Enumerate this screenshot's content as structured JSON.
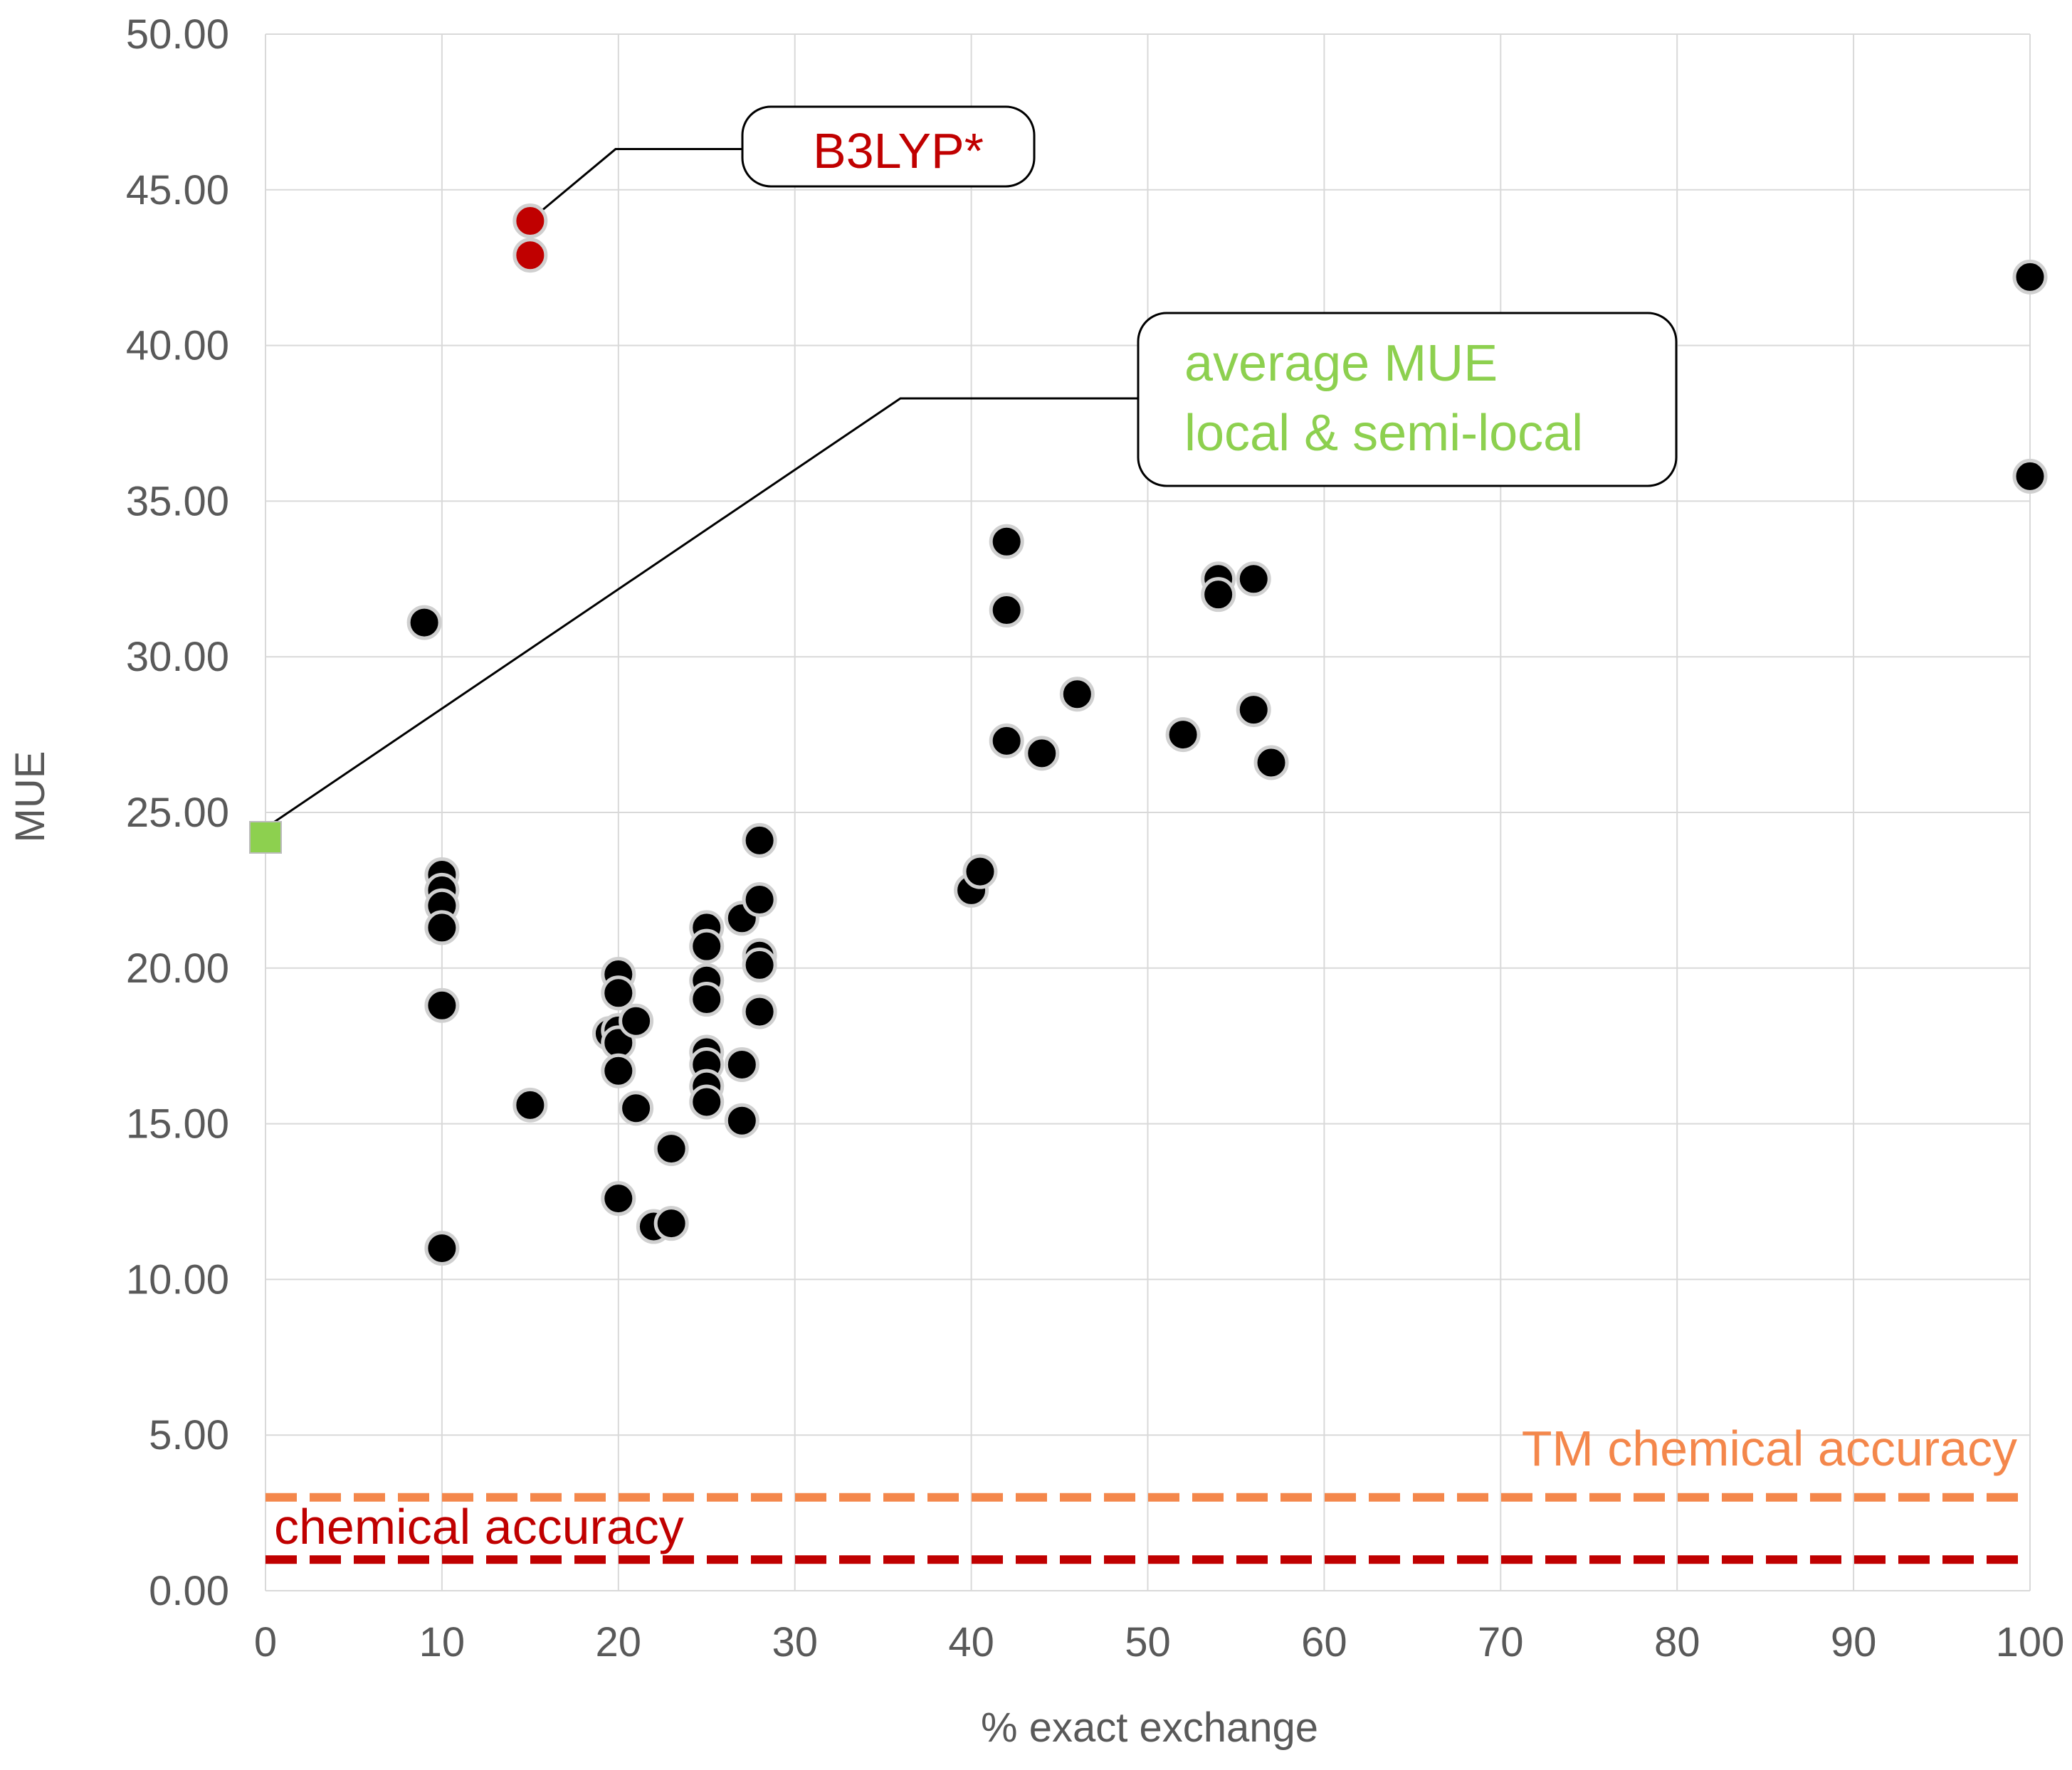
{
  "chart_data": {
    "type": "scatter",
    "title": "",
    "xlabel": "% exact exchange",
    "ylabel": "MUE",
    "xlim": [
      0,
      100
    ],
    "ylim": [
      0,
      50
    ],
    "x_ticks": [
      "0",
      "10",
      "20",
      "30",
      "40",
      "50",
      "60",
      "70",
      "80",
      "90",
      "100"
    ],
    "y_ticks": [
      "0.00",
      "5.00",
      "10.00",
      "15.00",
      "20.00",
      "25.00",
      "30.00",
      "35.00",
      "40.00",
      "45.00",
      "50.00"
    ],
    "grid": true,
    "colors": {
      "functionals": "#000000",
      "b3lyp": "#c00000",
      "average": "#8dd04f",
      "tm_line": "#f4874b",
      "chem_line": "#c00000",
      "grid": "#d9d9d9",
      "tick_text": "#595959"
    },
    "series": [
      {
        "name": "functionals",
        "marker": "circle",
        "points": [
          [
            9,
            31.1
          ],
          [
            10,
            23.0
          ],
          [
            10,
            22.5
          ],
          [
            10,
            22.0
          ],
          [
            10,
            21.3
          ],
          [
            10,
            18.8
          ],
          [
            10,
            11.0
          ],
          [
            15,
            15.6
          ],
          [
            19.5,
            17.9
          ],
          [
            20,
            19.8
          ],
          [
            20,
            19.2
          ],
          [
            20,
            18.0
          ],
          [
            20,
            17.6
          ],
          [
            20,
            16.7
          ],
          [
            20,
            12.6
          ],
          [
            21,
            18.3
          ],
          [
            21,
            15.5
          ],
          [
            22,
            11.7
          ],
          [
            23,
            11.8
          ],
          [
            23,
            14.2
          ],
          [
            25,
            21.3
          ],
          [
            25,
            20.7
          ],
          [
            25,
            19.6
          ],
          [
            25,
            19.0
          ],
          [
            25,
            17.3
          ],
          [
            25,
            16.9
          ],
          [
            25,
            16.2
          ],
          [
            25,
            15.7
          ],
          [
            27,
            21.6
          ],
          [
            27,
            16.9
          ],
          [
            27,
            15.1
          ],
          [
            28,
            24.1
          ],
          [
            28,
            22.2
          ],
          [
            28,
            20.4
          ],
          [
            28,
            20.1
          ],
          [
            28,
            18.6
          ],
          [
            40,
            22.5
          ],
          [
            40.5,
            23.1
          ],
          [
            42,
            33.7
          ],
          [
            42,
            31.5
          ],
          [
            42,
            27.3
          ],
          [
            44,
            26.9
          ],
          [
            46,
            28.8
          ],
          [
            52,
            27.5
          ],
          [
            54,
            32.5
          ],
          [
            54,
            32.0
          ],
          [
            56,
            32.5
          ],
          [
            56,
            28.3
          ],
          [
            57,
            26.6
          ],
          [
            100,
            42.2
          ],
          [
            100,
            35.8
          ]
        ]
      },
      {
        "name": "B3LYP*",
        "marker": "circle",
        "points": [
          [
            15,
            44.0
          ],
          [
            15,
            42.9
          ]
        ]
      },
      {
        "name": "average MUE local & semi-local",
        "marker": "square",
        "points": [
          [
            0,
            24.2
          ]
        ]
      }
    ],
    "reference_lines": [
      {
        "name": "TM chemical accuracy",
        "y": 3.0,
        "style": "dashed"
      },
      {
        "name": "chemical accuracy",
        "y": 1.0,
        "style": "dashed"
      }
    ],
    "annotations": [
      {
        "text": "B3LYP*",
        "target": [
          15,
          44.0
        ]
      },
      {
        "lines": [
          "average MUE",
          "local & semi-local"
        ],
        "target": [
          0,
          24.2
        ]
      }
    ]
  }
}
